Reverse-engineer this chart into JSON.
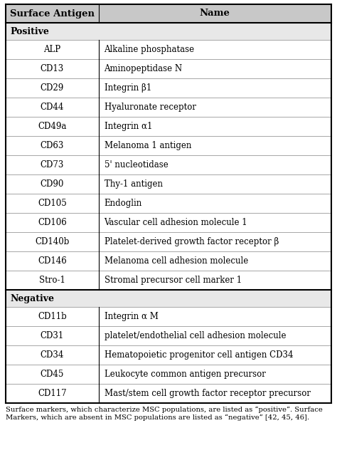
{
  "col_header": [
    "Surface Antigen",
    "Name"
  ],
  "col_split": 0.285,
  "positive_label": "Positive",
  "negative_label": "Negative",
  "positive_rows": [
    [
      "ALP",
      "Alkaline phosphatase"
    ],
    [
      "CD13",
      "Aminopeptidase N"
    ],
    [
      "CD29",
      "Integrin β1"
    ],
    [
      "CD44",
      "Hyaluronate receptor"
    ],
    [
      "CD49a",
      "Integrin α1"
    ],
    [
      "CD63",
      "Melanoma 1 antigen"
    ],
    [
      "CD73",
      "5' nucleotidase"
    ],
    [
      "CD90",
      "Thy-1 antigen"
    ],
    [
      "CD105",
      "Endoglin"
    ],
    [
      "CD106",
      "Vascular cell adhesion molecule 1"
    ],
    [
      "CD140b",
      "Platelet-derived growth factor receptor β"
    ],
    [
      "CD146",
      "Melanoma cell adhesion molecule"
    ],
    [
      "Stro-1",
      "Stromal precursor cell marker 1"
    ]
  ],
  "negative_rows": [
    [
      "CD11b",
      "Integrin α M"
    ],
    [
      "CD31",
      "platelet/endothelial cell adhesion molecule"
    ],
    [
      "CD34",
      "Hematopoietic progenitor cell antigen CD34"
    ],
    [
      "CD45",
      "Leukocyte common antigen precursor"
    ],
    [
      "CD117",
      "Mast/stem cell growth factor receptor precursor"
    ]
  ],
  "footnote_line1": "Surface markers, which characterize MSC populations, are listed as “positive”. Surface",
  "footnote_line2": "Markers, which are absent in MSC populations are listed as “negative” [42, 45, 46].",
  "header_bg": "#c8c8c8",
  "section_bg": "#e8e8e8",
  "row_bg": "#ffffff",
  "divider_color": "#999999",
  "border_color": "#000000",
  "thick_line": 1.5,
  "thin_line": 0.6,
  "font_size": 8.5,
  "header_font_size": 9.5,
  "section_font_size": 9.0,
  "footnote_font_size": 7.2
}
